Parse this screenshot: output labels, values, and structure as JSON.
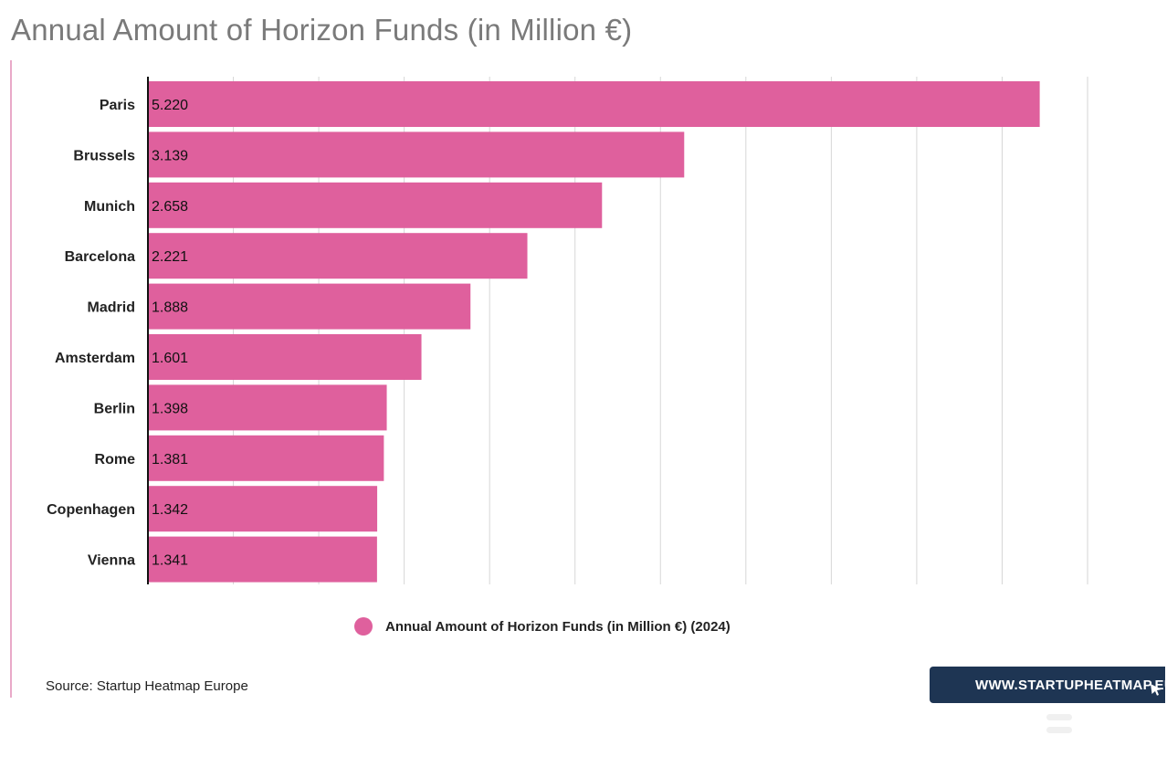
{
  "header": {
    "title": "Annual Amount of Horizon Funds (in Million €)"
  },
  "chart_data": {
    "type": "bar",
    "orientation": "horizontal",
    "title": "Annual Amount of Horizon Funds (in Million €)",
    "categories": [
      "Paris",
      "Brussels",
      "Munich",
      "Barcelona",
      "Madrid",
      "Amsterdam",
      "Berlin",
      "Rome",
      "Copenhagen",
      "Vienna"
    ],
    "series": [
      {
        "name": "Annual Amount of Horizon Funds (in Million €) (2024)",
        "values": [
          5220,
          3139,
          2658,
          2221,
          1888,
          1601,
          1398,
          1381,
          1342,
          1341
        ],
        "labels": [
          "5.220",
          "3.139",
          "2.658",
          "2.221",
          "1.888",
          "1.601",
          "1.398",
          "1.381",
          "1.342",
          "1.341"
        ],
        "color": "#df609d"
      }
    ],
    "xlim": [
      0,
      5500
    ],
    "grid": true,
    "legend": "bottom-center"
  },
  "legend": {
    "label": "Annual Amount of Horizon Funds (in Million €) (2024)"
  },
  "footer": {
    "source": "Source: Startup Heatmap Europe",
    "brand_label": "WWW.STARTUPHEATMAP.EU"
  },
  "icons": {
    "brand_cursor": "cursor-arrow-icon",
    "menu": "menu-icon"
  },
  "colors": {
    "bar": "#df609d",
    "brand_bg": "#1e3553",
    "title": "#7a7a7a"
  }
}
